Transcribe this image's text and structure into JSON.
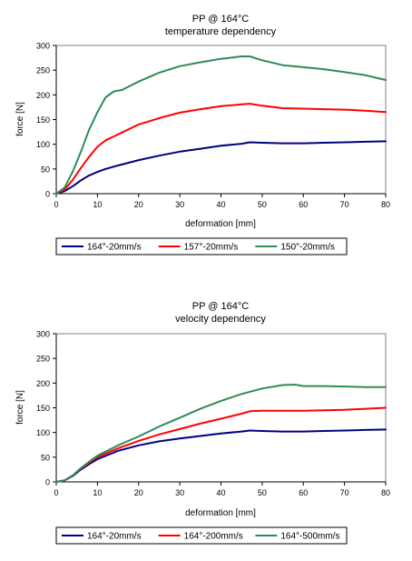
{
  "chart_data": [
    {
      "type": "line",
      "title": "PP @ 164°C",
      "subtitle": "temperature dependency",
      "xlabel": "deformation [mm]",
      "ylabel": "force [N]",
      "xlim": [
        0,
        80
      ],
      "ylim": [
        0,
        300
      ],
      "xticks": [
        0,
        10,
        20,
        30,
        40,
        50,
        60,
        70,
        80
      ],
      "yticks": [
        0,
        50,
        100,
        150,
        200,
        250,
        300
      ],
      "grid": false,
      "legend": "bottom",
      "series": [
        {
          "name": "164°-20mm/s",
          "color": "#000080",
          "x": [
            0,
            2,
            4,
            6,
            8,
            10,
            12,
            15,
            20,
            25,
            30,
            35,
            40,
            45,
            47,
            50,
            55,
            60,
            65,
            70,
            75,
            80
          ],
          "y": [
            0,
            5,
            15,
            27,
            37,
            44,
            50,
            57,
            68,
            77,
            85,
            91,
            97,
            101,
            104,
            103,
            102,
            102,
            103,
            104,
            105,
            106
          ]
        },
        {
          "name": "157°-20mm/s",
          "color": "#ff0000",
          "x": [
            0,
            2,
            4,
            6,
            8,
            10,
            12,
            15,
            20,
            25,
            30,
            35,
            40,
            45,
            47,
            50,
            55,
            60,
            65,
            70,
            75,
            80
          ],
          "y": [
            0,
            8,
            28,
            52,
            75,
            95,
            108,
            120,
            140,
            153,
            164,
            171,
            177,
            181,
            182,
            178,
            173,
            172,
            171,
            170,
            168,
            165
          ]
        },
        {
          "name": "150°-20mm/s",
          "color": "#2e8b57",
          "x": [
            0,
            2,
            4,
            6,
            8,
            10,
            12,
            14,
            16,
            20,
            25,
            30,
            35,
            40,
            45,
            47,
            50,
            55,
            60,
            65,
            70,
            75,
            80
          ],
          "y": [
            0,
            12,
            45,
            85,
            130,
            165,
            195,
            207,
            210,
            227,
            245,
            258,
            266,
            273,
            278,
            278,
            270,
            260,
            256,
            252,
            246,
            240,
            230
          ]
        }
      ]
    },
    {
      "type": "line",
      "title": "PP @ 164°C",
      "subtitle": "velocity dependency",
      "xlabel": "deformation [mm]",
      "ylabel": "force [N]",
      "xlim": [
        0,
        80
      ],
      "ylim": [
        0,
        300
      ],
      "xticks": [
        0,
        10,
        20,
        30,
        40,
        50,
        60,
        70,
        80
      ],
      "yticks": [
        0,
        50,
        100,
        150,
        200,
        250,
        300
      ],
      "grid": false,
      "legend": "bottom",
      "series": [
        {
          "name": "164°-20mm/s",
          "color": "#000080",
          "x": [
            0,
            2,
            4,
            6,
            8,
            10,
            15,
            20,
            25,
            30,
            35,
            40,
            45,
            47,
            50,
            55,
            60,
            65,
            70,
            75,
            80
          ],
          "y": [
            0,
            3,
            12,
            25,
            36,
            46,
            63,
            74,
            82,
            88,
            93,
            98,
            102,
            104,
            103,
            102,
            102,
            103,
            104,
            105,
            106
          ]
        },
        {
          "name": "164°-200mm/s",
          "color": "#ff0000",
          "x": [
            0,
            2,
            4,
            6,
            8,
            10,
            15,
            20,
            25,
            30,
            35,
            40,
            45,
            47,
            50,
            55,
            60,
            65,
            70,
            75,
            80
          ],
          "y": [
            0,
            3,
            13,
            27,
            39,
            50,
            68,
            83,
            96,
            107,
            118,
            128,
            138,
            143,
            144,
            144,
            144,
            145,
            146,
            148,
            150
          ]
        },
        {
          "name": "164°-500mm/s",
          "color": "#2e8b57",
          "x": [
            0,
            2,
            4,
            6,
            8,
            10,
            15,
            20,
            25,
            30,
            35,
            40,
            45,
            50,
            55,
            58,
            60,
            65,
            70,
            75,
            80
          ],
          "y": [
            0,
            3,
            13,
            28,
            41,
            53,
            74,
            92,
            112,
            130,
            148,
            164,
            178,
            189,
            196,
            197,
            194,
            194,
            193,
            192,
            192
          ]
        }
      ]
    }
  ]
}
